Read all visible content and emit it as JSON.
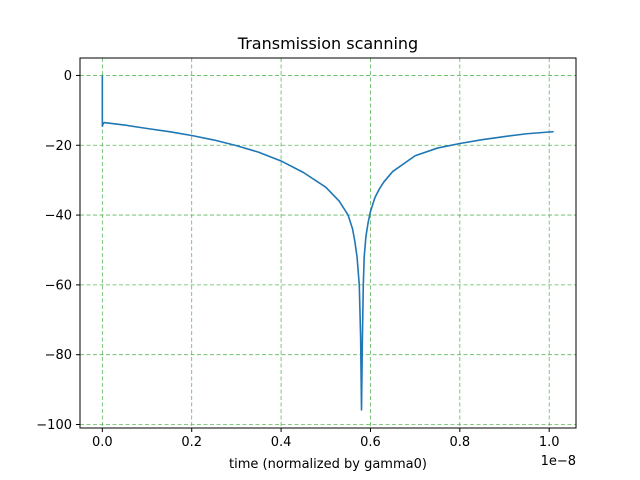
{
  "chart_data": {
    "type": "line",
    "title": "Transmission scanning",
    "xlabel": "time (normalized by gamma0)",
    "ylabel": "",
    "x_offset_label": "1e−8",
    "xlim": [
      -0.05,
      1.06
    ],
    "ylim": [
      -101,
      5
    ],
    "xticks": [
      0.0,
      0.2,
      0.4,
      0.6,
      0.8,
      1.0
    ],
    "xtick_labels": [
      "0.0",
      "0.2",
      "0.4",
      "0.6",
      "0.8",
      "1.0"
    ],
    "yticks": [
      0,
      -20,
      -40,
      -60,
      -80,
      -100
    ],
    "ytick_labels": [
      "0",
      "−20",
      "−40",
      "−60",
      "−80",
      "−100"
    ],
    "grid": true,
    "grid_color": "#5cb85c",
    "line_color": "#1f77b4",
    "series": [
      {
        "name": "",
        "x": [
          0.0,
          0.0,
          0.002,
          0.004,
          0.05,
          0.1,
          0.15,
          0.2,
          0.25,
          0.3,
          0.35,
          0.4,
          0.45,
          0.5,
          0.53,
          0.55,
          0.56,
          0.565,
          0.57,
          0.575,
          0.578,
          0.58,
          0.582,
          0.584,
          0.586,
          0.59,
          0.595,
          0.6,
          0.61,
          0.62,
          0.63,
          0.65,
          0.7,
          0.75,
          0.8,
          0.85,
          0.9,
          0.95,
          1.0,
          1.01
        ],
        "y": [
          0,
          -14.5,
          -13.8,
          -13.5,
          -14.2,
          -15.2,
          -16.1,
          -17.2,
          -18.5,
          -20.1,
          -22.0,
          -24.5,
          -27.8,
          -32.0,
          -36.0,
          -40.0,
          -44.0,
          -47.5,
          -52.0,
          -60.0,
          -75.0,
          -95.8,
          -75.0,
          -60.0,
          -52.0,
          -46.0,
          -42.0,
          -39.0,
          -35.0,
          -32.5,
          -30.5,
          -27.5,
          -23.0,
          -20.8,
          -19.5,
          -18.4,
          -17.5,
          -16.7,
          -16.2,
          -16.1
        ]
      }
    ]
  }
}
